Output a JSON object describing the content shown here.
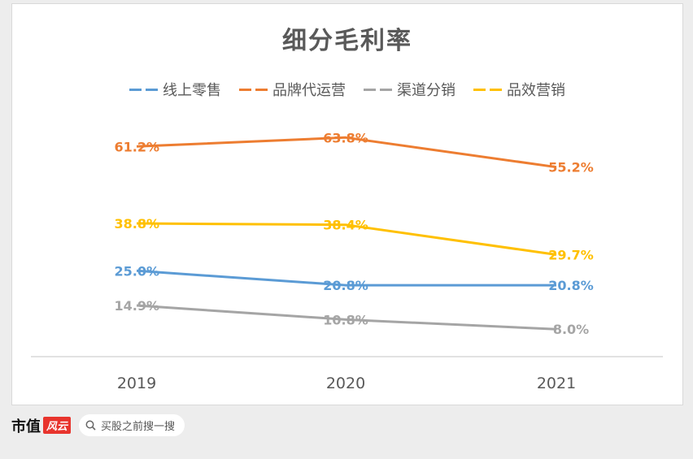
{
  "chart_data": {
    "type": "line",
    "title": "细分毛利率",
    "categories": [
      "2019",
      "2020",
      "2021"
    ],
    "series": [
      {
        "name": "线上零售",
        "color": "#5b9bd5",
        "values": [
          25.0,
          20.8,
          20.8
        ],
        "labels": [
          "25.0%",
          "20.8%",
          "20.8%"
        ]
      },
      {
        "name": "品牌代运营",
        "color": "#ed7d31",
        "values": [
          61.2,
          63.8,
          55.2
        ],
        "labels": [
          "61.2%",
          "63.8%",
          "55.2%"
        ]
      },
      {
        "name": "渠道分销",
        "color": "#a5a5a5",
        "values": [
          14.9,
          10.8,
          8.0
        ],
        "labels": [
          "14.9%",
          "10.8%",
          "8.0%"
        ]
      },
      {
        "name": "品效营销",
        "color": "#ffc000",
        "values": [
          38.8,
          38.4,
          29.7
        ],
        "labels": [
          "38.8%",
          "38.4%",
          "29.7%"
        ]
      }
    ],
    "ylim": [
      0,
      75
    ],
    "grid": false,
    "legend_position": "top"
  },
  "footer": {
    "brand_text": "市值",
    "brand_badge": "风云",
    "search_text": "买股之前搜一搜",
    "search_icon": "search-icon"
  }
}
